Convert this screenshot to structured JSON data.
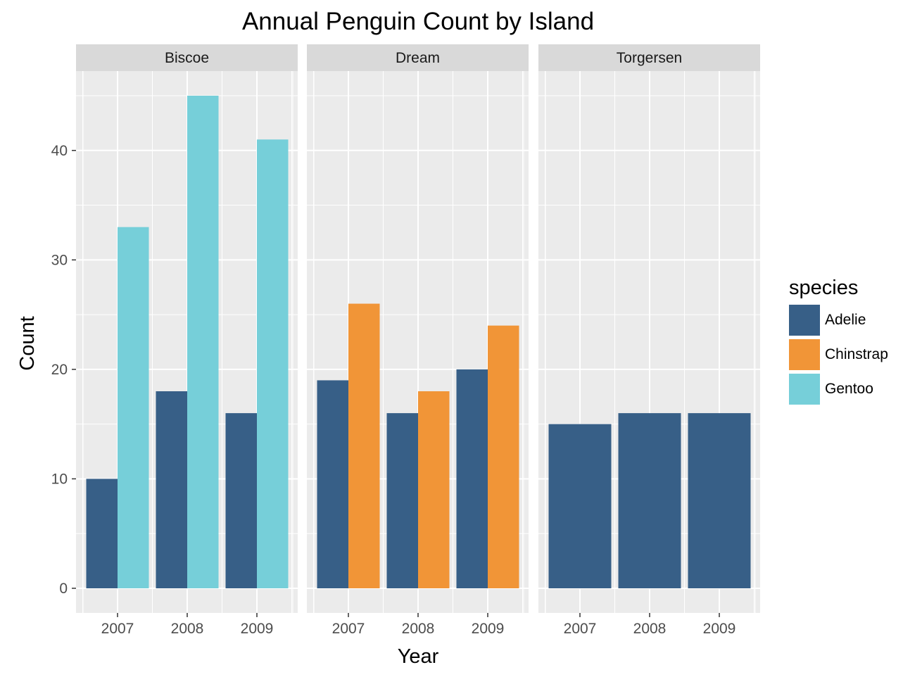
{
  "chart_data": {
    "type": "bar",
    "title": "Annual Penguin Count by Island",
    "xlabel": "Year",
    "ylabel": "Count",
    "ylim": [
      -2.3,
      49
    ],
    "y_ticks": [
      0,
      10,
      20,
      30,
      40
    ],
    "grid": true,
    "legend": {
      "title": "species",
      "placement": "right"
    },
    "categories": [
      "2007",
      "2008",
      "2009"
    ],
    "species": [
      {
        "name": "Adelie",
        "color": "#375f87"
      },
      {
        "name": "Chinstrap",
        "color": "#f19537"
      },
      {
        "name": "Gentoo",
        "color": "#76cfd9"
      }
    ],
    "facets": [
      {
        "name": "Biscoe",
        "series": [
          {
            "name": "Adelie",
            "values": [
              10,
              18,
              16
            ]
          },
          {
            "name": "Gentoo",
            "values": [
              33,
              45,
              41
            ]
          }
        ]
      },
      {
        "name": "Dream",
        "series": [
          {
            "name": "Adelie",
            "values": [
              19,
              16,
              20
            ]
          },
          {
            "name": "Chinstrap",
            "values": [
              26,
              18,
              24
            ]
          }
        ]
      },
      {
        "name": "Torgersen",
        "series": [
          {
            "name": "Adelie",
            "values": [
              15,
              16,
              16
            ]
          }
        ]
      }
    ]
  }
}
